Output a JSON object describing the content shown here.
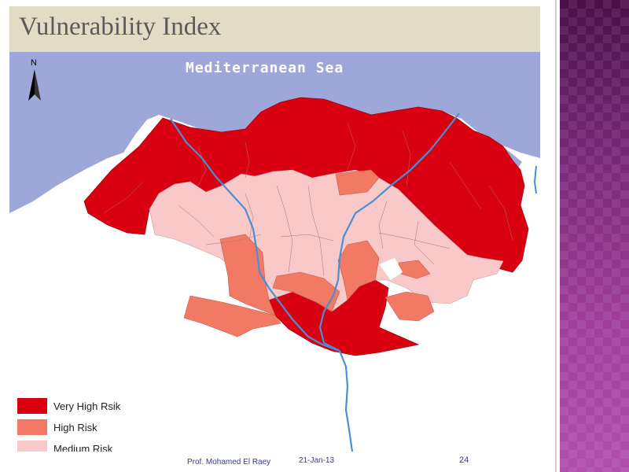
{
  "slide": {
    "title": "Vulnerability Index"
  },
  "map": {
    "sea_label": "Mediterranean Sea",
    "north_label": "N",
    "colors": {
      "sea": "#9da7d9",
      "very_high": "#d90012",
      "high": "#f27a64",
      "medium": "#f9c9c9",
      "river": "#4a8fd6",
      "land_bg": "#ffffff"
    }
  },
  "legend": {
    "items": [
      {
        "label": "Very High Rsik",
        "color": "#d90012"
      },
      {
        "label": "High Risk",
        "color": "#f27a64"
      },
      {
        "label": "Medium Risk",
        "color": "#f9c9c9"
      }
    ]
  },
  "footer": {
    "author": "Prof. Mohamed El Raey",
    "date": "21-Jan-13",
    "page": "24"
  }
}
